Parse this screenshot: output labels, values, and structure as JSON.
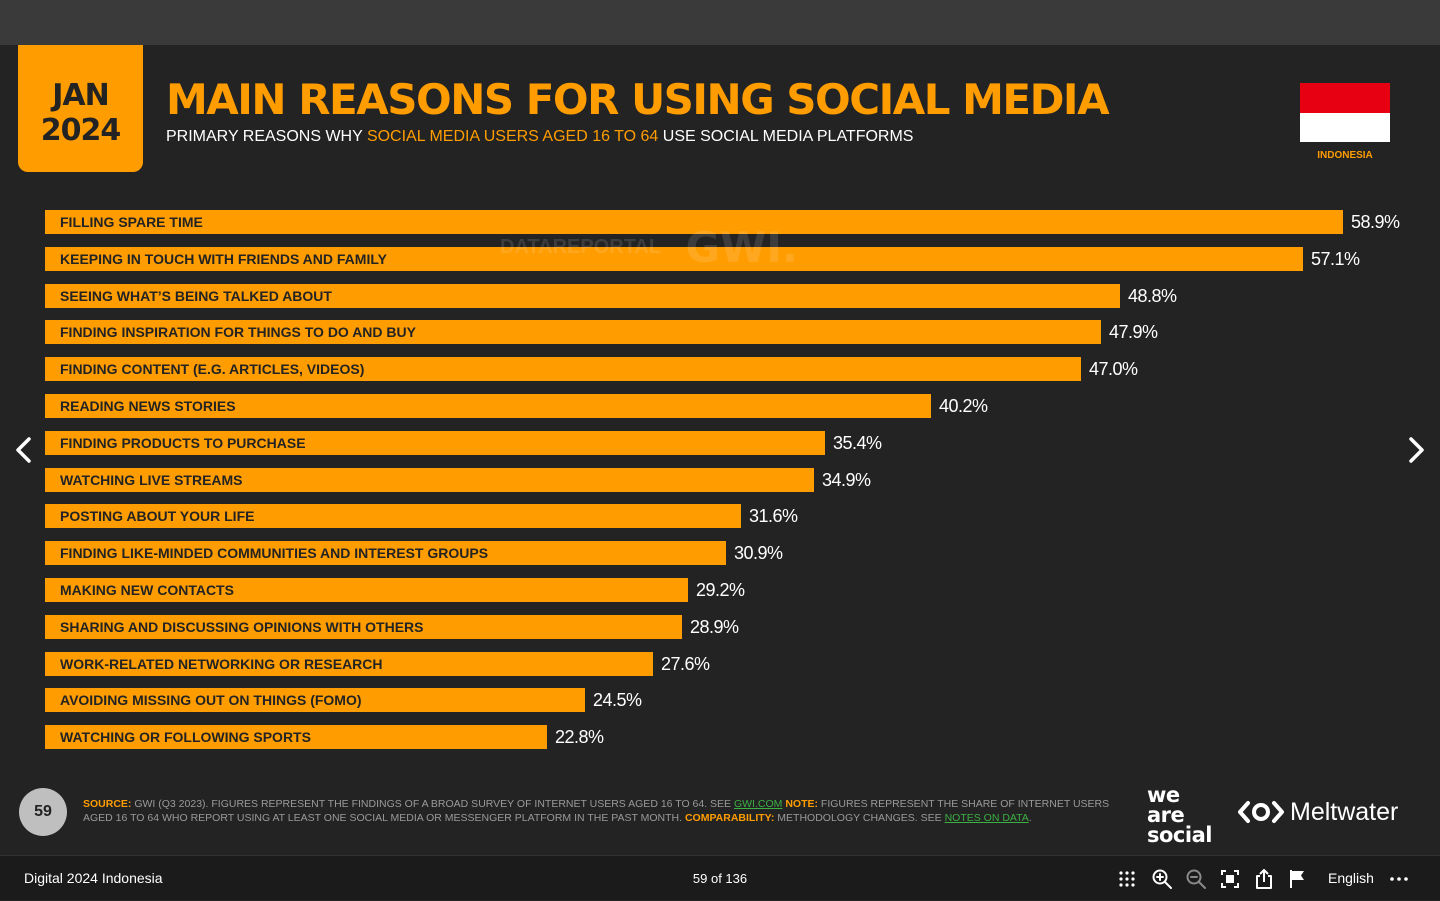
{
  "slide": {
    "date_month": "JAN",
    "date_year": "2024",
    "title": "MAIN REASONS FOR USING SOCIAL MEDIA",
    "subtitle_pre": "PRIMARY REASONS WHY ",
    "subtitle_highlight": "SOCIAL MEDIA USERS AGED 16 TO 64",
    "subtitle_post": " USE SOCIAL MEDIA PLATFORMS",
    "flag_label": "INDONESIA",
    "watermark_datareportal": "DATAREPORTAL",
    "watermark_gwi": "GWI.",
    "page_number": "59",
    "source_key": "SOURCE:",
    "source_text": " GWI (Q3 2023). FIGURES REPRESENT THE FINDINGS OF A BROAD SURVEY OF INTERNET USERS AGED 16 TO 64. SEE ",
    "source_link": "GWI.COM",
    "note_key": " NOTE:",
    "note_text": " FIGURES REPRESENT THE SHARE OF INTERNET USERS AGED 16 TO 64 WHO REPORT USING AT LEAST ONE SOCIAL MEDIA OR MESSENGER PLATFORM IN THE PAST MONTH. ",
    "comparability_key": "COMPARABILITY:",
    "comparability_text": " METHODOLOGY CHANGES. SEE ",
    "notes_link": "NOTES ON DATA",
    "notes_end": ".",
    "logo_we": "we",
    "logo_are": "are",
    "logo_social": "social",
    "logo_meltwater": "Meltwater"
  },
  "colors": {
    "accent": "#ff9d00",
    "background": "#232323",
    "flag_red": "#e70011"
  },
  "chart_data": {
    "type": "bar",
    "orientation": "horizontal",
    "categories": [
      "FILLING SPARE TIME",
      "KEEPING IN TOUCH WITH FRIENDS AND FAMILY",
      "SEEING WHAT’S BEING TALKED ABOUT",
      "FINDING INSPIRATION FOR THINGS TO DO AND BUY",
      "FINDING CONTENT (E.G. ARTICLES, VIDEOS)",
      "READING NEWS STORIES",
      "FINDING PRODUCTS TO PURCHASE",
      "WATCHING LIVE STREAMS",
      "POSTING ABOUT YOUR LIFE",
      "FINDING LIKE-MINDED COMMUNITIES AND INTEREST GROUPS",
      "MAKING NEW CONTACTS",
      "SHARING AND DISCUSSING OPINIONS WITH OTHERS",
      "WORK-RELATED NETWORKING OR RESEARCH",
      "AVOIDING MISSING OUT ON THINGS (FOMO)",
      "WATCHING OR FOLLOWING SPORTS"
    ],
    "values": [
      58.9,
      57.1,
      48.8,
      47.9,
      47.0,
      40.2,
      35.4,
      34.9,
      31.6,
      30.9,
      29.2,
      28.9,
      27.6,
      24.5,
      22.8
    ],
    "value_labels": [
      "58.9%",
      "57.1%",
      "48.8%",
      "47.9%",
      "47.0%",
      "40.2%",
      "35.4%",
      "34.9%",
      "31.6%",
      "30.9%",
      "29.2%",
      "28.9%",
      "27.6%",
      "24.5%",
      "22.8%"
    ],
    "unit": "%",
    "xlim": [
      0,
      58.9
    ],
    "grid": false,
    "legend": "none"
  },
  "viewer": {
    "doc_title": "Digital 2024 Indonesia",
    "page_count": "59 of 136",
    "language": "English",
    "tools": [
      "grid-icon",
      "zoom-in-icon",
      "zoom-out-icon",
      "fit-screen-icon",
      "share-icon",
      "flag-icon",
      "more-icon"
    ]
  }
}
